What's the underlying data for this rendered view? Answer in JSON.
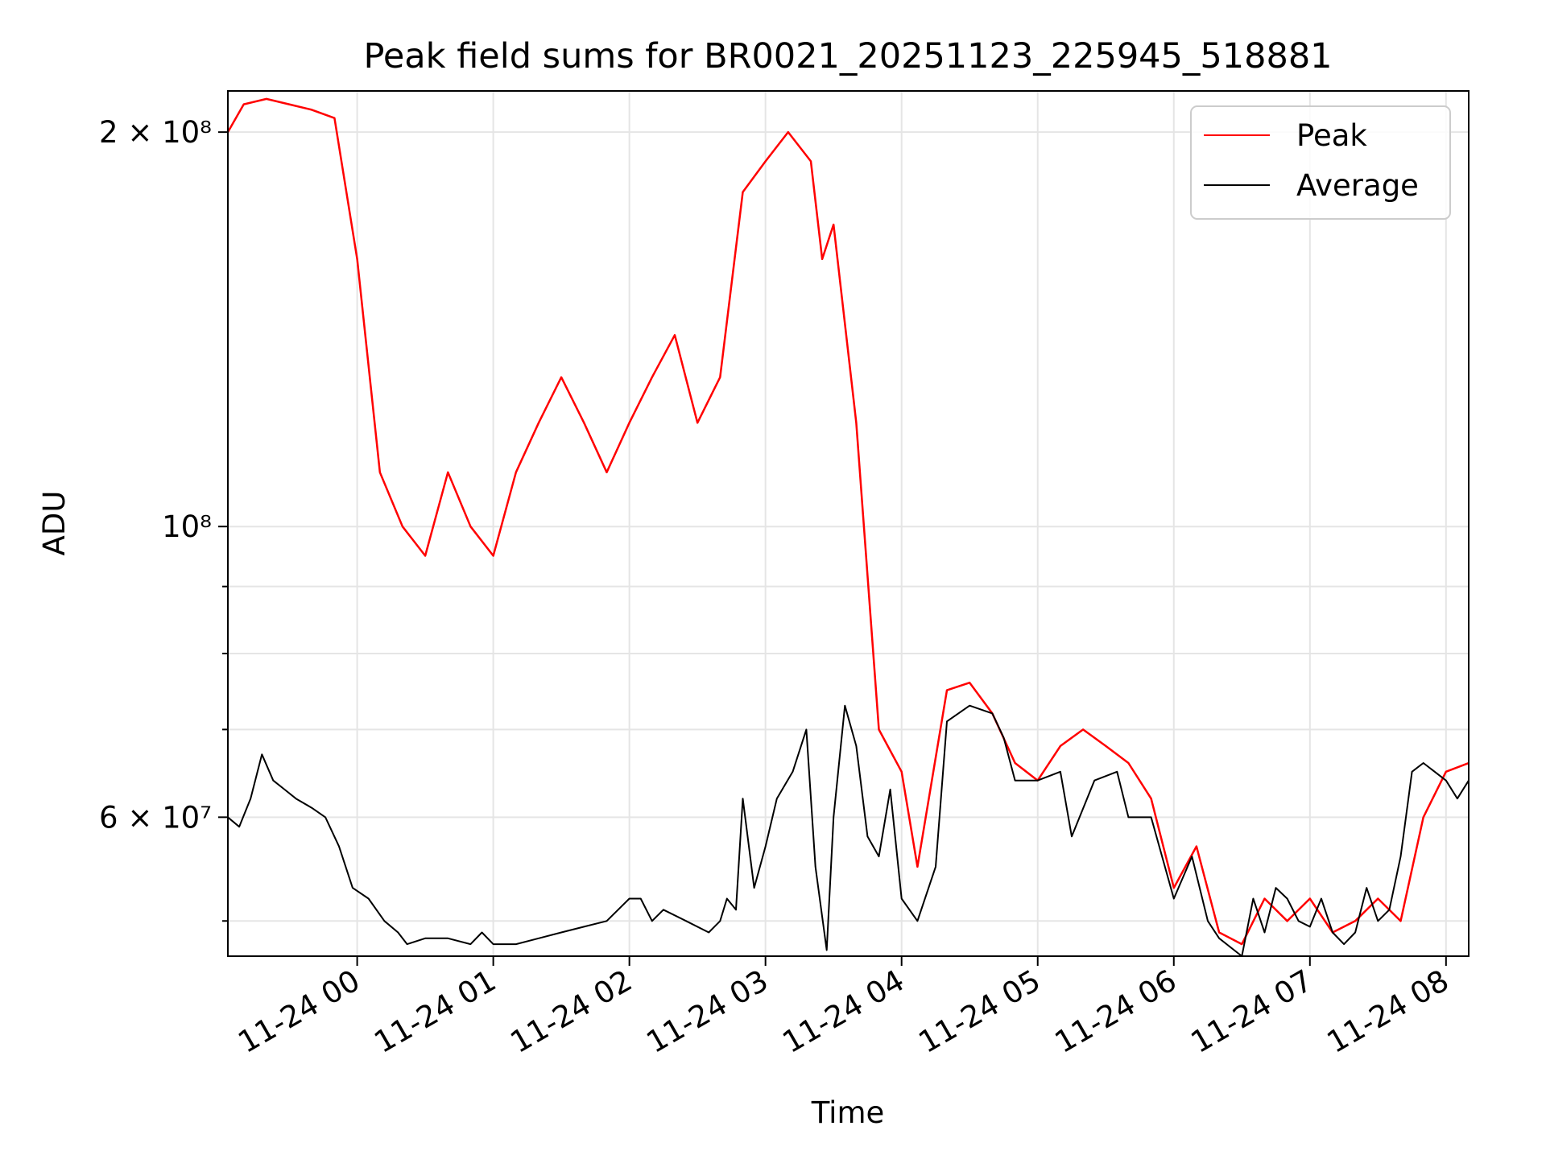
{
  "chart_data": {
    "type": "line",
    "title": "Peak field sums for BR0021_20251123_225945_518881",
    "xlabel": "Time",
    "ylabel": "ADU",
    "yscale": "log",
    "grid": true,
    "legend_placement": "top-right",
    "xlim": [
      "2025-11-23 23:03",
      "2025-11-24 08:10"
    ],
    "ylim": [
      47000000,
      215000000
    ],
    "x_ticks": [
      {
        "value": "2025-11-24 00:00",
        "label": "11-24 00"
      },
      {
        "value": "2025-11-24 01:00",
        "label": "11-24 01"
      },
      {
        "value": "2025-11-24 02:00",
        "label": "11-24 02"
      },
      {
        "value": "2025-11-24 03:00",
        "label": "11-24 03"
      },
      {
        "value": "2025-11-24 04:00",
        "label": "11-24 04"
      },
      {
        "value": "2025-11-24 05:00",
        "label": "11-24 05"
      },
      {
        "value": "2025-11-24 06:00",
        "label": "11-24 06"
      },
      {
        "value": "2025-11-24 07:00",
        "label": "11-24 07"
      },
      {
        "value": "2025-11-24 08:00",
        "label": "11-24 08"
      }
    ],
    "y_ticks": [
      {
        "value": 200000000,
        "label": "2 × 10⁸"
      },
      {
        "value": 100000000,
        "label": "10⁸"
      },
      {
        "value": 60000000,
        "label": "6 × 10⁷"
      }
    ],
    "y_minor_ticks": [
      50000000,
      70000000,
      80000000,
      90000000
    ],
    "series": [
      {
        "name": "Peak",
        "color": "#ff0000",
        "x": [
          "2025-11-23 23:03",
          "2025-11-23 23:10",
          "2025-11-23 23:20",
          "2025-11-23 23:30",
          "2025-11-23 23:40",
          "2025-11-23 23:50",
          "2025-11-24 00:00",
          "2025-11-24 00:10",
          "2025-11-24 00:20",
          "2025-11-24 00:30",
          "2025-11-24 00:40",
          "2025-11-24 00:50",
          "2025-11-24 01:00",
          "2025-11-24 01:10",
          "2025-11-24 01:20",
          "2025-11-24 01:30",
          "2025-11-24 01:40",
          "2025-11-24 01:50",
          "2025-11-24 02:00",
          "2025-11-24 02:10",
          "2025-11-24 02:20",
          "2025-11-24 02:30",
          "2025-11-24 02:40",
          "2025-11-24 02:50",
          "2025-11-24 03:00",
          "2025-11-24 03:10",
          "2025-11-24 03:20",
          "2025-11-24 03:25",
          "2025-11-24 03:30",
          "2025-11-24 03:40",
          "2025-11-24 03:50",
          "2025-11-24 04:00",
          "2025-11-24 04:07",
          "2025-11-24 04:20",
          "2025-11-24 04:30",
          "2025-11-24 04:40",
          "2025-11-24 04:50",
          "2025-11-24 05:00",
          "2025-11-24 05:10",
          "2025-11-24 05:20",
          "2025-11-24 05:30",
          "2025-11-24 05:40",
          "2025-11-24 05:50",
          "2025-11-24 06:00",
          "2025-11-24 06:10",
          "2025-11-24 06:20",
          "2025-11-24 06:30",
          "2025-11-24 06:40",
          "2025-11-24 06:50",
          "2025-11-24 07:00",
          "2025-11-24 07:10",
          "2025-11-24 07:20",
          "2025-11-24 07:30",
          "2025-11-24 07:40",
          "2025-11-24 07:50",
          "2025-11-24 08:00",
          "2025-11-24 08:10"
        ],
        "y": [
          200000000,
          210000000,
          212000000,
          210000000,
          208000000,
          205000000,
          160000000,
          110000000,
          100000000,
          95000000,
          110000000,
          100000000,
          95000000,
          110000000,
          120000000,
          130000000,
          120000000,
          110000000,
          120000000,
          130000000,
          140000000,
          120000000,
          130000000,
          180000000,
          190000000,
          200000000,
          190000000,
          160000000,
          170000000,
          120000000,
          70000000,
          65000000,
          55000000,
          75000000,
          76000000,
          72000000,
          66000000,
          64000000,
          68000000,
          70000000,
          68000000,
          66000000,
          62000000,
          53000000,
          57000000,
          49000000,
          48000000,
          52000000,
          50000000,
          52000000,
          49000000,
          50000000,
          52000000,
          50000000,
          60000000,
          65000000,
          66000000
        ]
      },
      {
        "name": "Average",
        "color": "#000000",
        "x": [
          "2025-11-23 23:03",
          "2025-11-23 23:08",
          "2025-11-23 23:13",
          "2025-11-23 23:18",
          "2025-11-23 23:23",
          "2025-11-23 23:28",
          "2025-11-23 23:33",
          "2025-11-23 23:40",
          "2025-11-23 23:46",
          "2025-11-23 23:52",
          "2025-11-23 23:58",
          "2025-11-24 00:05",
          "2025-11-24 00:12",
          "2025-11-24 00:18",
          "2025-11-24 00:22",
          "2025-11-24 00:30",
          "2025-11-24 00:40",
          "2025-11-24 00:50",
          "2025-11-24 00:55",
          "2025-11-24 01:00",
          "2025-11-24 01:10",
          "2025-11-24 01:20",
          "2025-11-24 01:30",
          "2025-11-24 01:40",
          "2025-11-24 01:50",
          "2025-11-24 02:00",
          "2025-11-24 02:05",
          "2025-11-24 02:10",
          "2025-11-24 02:15",
          "2025-11-24 02:25",
          "2025-11-24 02:35",
          "2025-11-24 02:40",
          "2025-11-24 02:43",
          "2025-11-24 02:47",
          "2025-11-24 02:50",
          "2025-11-24 02:55",
          "2025-11-24 03:00",
          "2025-11-24 03:05",
          "2025-11-24 03:12",
          "2025-11-24 03:18",
          "2025-11-24 03:22",
          "2025-11-24 03:27",
          "2025-11-24 03:30",
          "2025-11-24 03:35",
          "2025-11-24 03:40",
          "2025-11-24 03:45",
          "2025-11-24 03:50",
          "2025-11-24 03:55",
          "2025-11-24 04:00",
          "2025-11-24 04:07",
          "2025-11-24 04:15",
          "2025-11-24 04:20",
          "2025-11-24 04:30",
          "2025-11-24 04:40",
          "2025-11-24 04:45",
          "2025-11-24 04:50",
          "2025-11-24 05:00",
          "2025-11-24 05:10",
          "2025-11-24 05:15",
          "2025-11-24 05:25",
          "2025-11-24 05:35",
          "2025-11-24 05:40",
          "2025-11-24 05:50",
          "2025-11-24 06:00",
          "2025-11-24 06:08",
          "2025-11-24 06:15",
          "2025-11-24 06:20",
          "2025-11-24 06:30",
          "2025-11-24 06:35",
          "2025-11-24 06:40",
          "2025-11-24 06:45",
          "2025-11-24 06:50",
          "2025-11-24 06:55",
          "2025-11-24 07:00",
          "2025-11-24 07:05",
          "2025-11-24 07:10",
          "2025-11-24 07:15",
          "2025-11-24 07:20",
          "2025-11-24 07:25",
          "2025-11-24 07:30",
          "2025-11-24 07:35",
          "2025-11-24 07:40",
          "2025-11-24 07:45",
          "2025-11-24 07:50",
          "2025-11-24 07:55",
          "2025-11-24 08:00",
          "2025-11-24 08:05",
          "2025-11-24 08:10"
        ],
        "y": [
          60000000,
          59000000,
          62000000,
          67000000,
          64000000,
          63000000,
          62000000,
          61000000,
          60000000,
          57000000,
          53000000,
          52000000,
          50000000,
          49000000,
          48000000,
          48500000,
          48500000,
          48000000,
          49000000,
          48000000,
          48000000,
          48500000,
          49000000,
          49500000,
          50000000,
          52000000,
          52000000,
          50000000,
          51000000,
          50000000,
          49000000,
          50000000,
          52000000,
          51000000,
          62000000,
          53000000,
          57000000,
          62000000,
          65000000,
          70000000,
          55000000,
          47500000,
          60000000,
          73000000,
          68000000,
          58000000,
          56000000,
          63000000,
          52000000,
          50000000,
          55000000,
          71000000,
          73000000,
          72000000,
          69000000,
          64000000,
          64000000,
          65000000,
          58000000,
          64000000,
          65000000,
          60000000,
          60000000,
          52000000,
          56000000,
          50000000,
          48500000,
          47000000,
          52000000,
          49000000,
          53000000,
          52000000,
          50000000,
          49500000,
          52000000,
          49000000,
          48000000,
          49000000,
          53000000,
          50000000,
          51000000,
          56000000,
          65000000,
          66000000,
          65000000,
          64000000,
          62000000,
          64000000
        ]
      }
    ]
  }
}
